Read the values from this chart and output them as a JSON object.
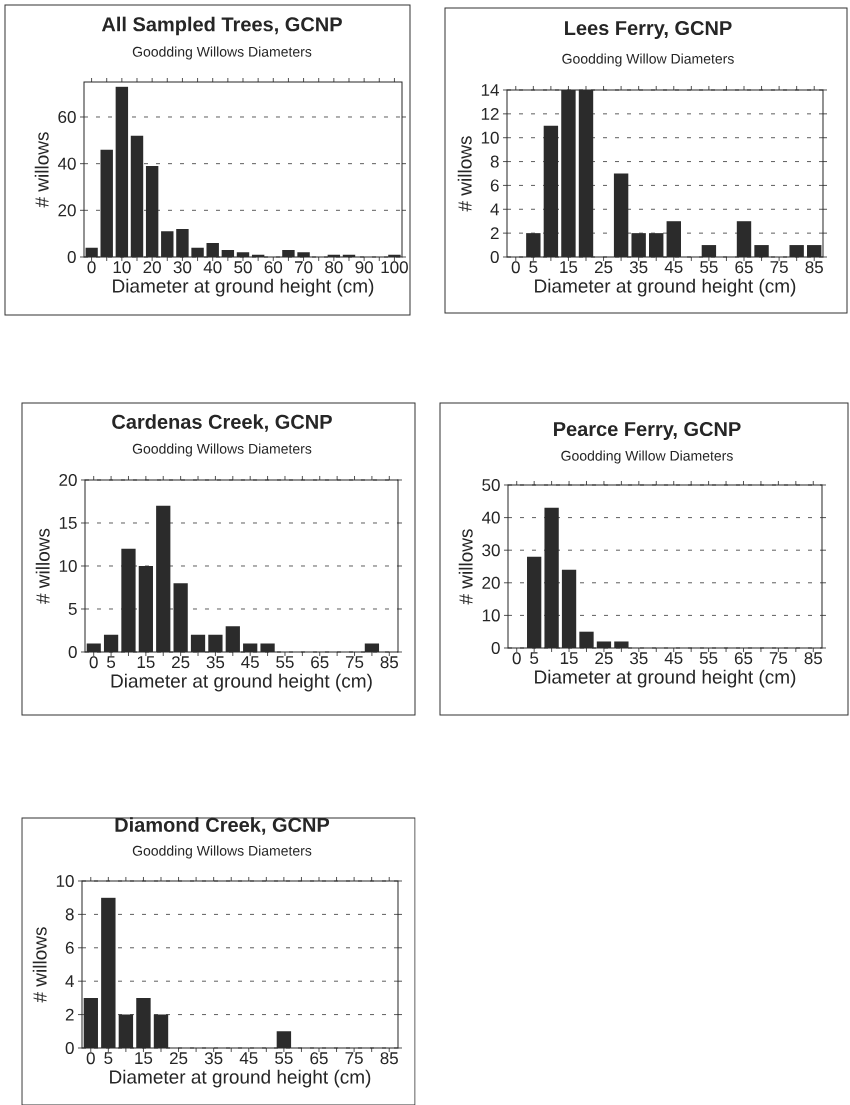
{
  "chart_data": [
    {
      "type": "bar",
      "title": "All Sampled Trees, GCNP",
      "subtitle": "Goodding Willows Diameters",
      "xlabel": "Diameter at ground height (cm)",
      "ylabel": "# willows",
      "categories": [
        "0",
        null,
        "10",
        null,
        "20",
        null,
        "30",
        null,
        "40",
        null,
        "50",
        null,
        "60",
        null,
        "70",
        null,
        "80",
        null,
        "90",
        null,
        "100"
      ],
      "values": [
        4,
        46,
        73,
        52,
        39,
        11,
        12,
        4,
        6,
        3,
        2,
        1,
        0,
        3,
        2,
        0,
        1,
        1,
        0,
        0,
        1
      ],
      "color": "#2b2b2b",
      "ylim": [
        0,
        75
      ],
      "yticks": [
        0,
        20,
        40,
        60
      ],
      "grid": "y"
    },
    {
      "type": "bar",
      "title": "Lees Ferry, GCNP",
      "subtitle": "Goodding Willow Diameters",
      "xlabel": "Diameter at ground height (cm)",
      "ylabel": "# willows",
      "categories": [
        "0",
        "5",
        null,
        "15",
        null,
        "25",
        null,
        "35",
        null,
        "45",
        null,
        "55",
        null,
        "65",
        null,
        "75",
        null,
        "85"
      ],
      "values": [
        0,
        2,
        11,
        14,
        14,
        0,
        7,
        2,
        2,
        3,
        0,
        1,
        0,
        3,
        1,
        0,
        1,
        1
      ],
      "color": "#2b2b2b",
      "ylim": [
        0,
        14
      ],
      "yticks": [
        0,
        2,
        4,
        6,
        8,
        10,
        12,
        14
      ],
      "grid": "y"
    },
    {
      "type": "bar",
      "title": "Cardenas Creek, GCNP",
      "subtitle": "Goodding Willows Diameters",
      "xlabel": "Diameter at ground height (cm)",
      "ylabel": "# willows",
      "categories": [
        "0",
        "5",
        null,
        "15",
        null,
        "25",
        null,
        "35",
        null,
        "45",
        null,
        "55",
        null,
        "65",
        null,
        "75",
        null,
        "85"
      ],
      "values": [
        1,
        2,
        12,
        10,
        17,
        8,
        2,
        2,
        3,
        1,
        1,
        0,
        0,
        0,
        0,
        0,
        1,
        0
      ],
      "color": "#2b2b2b",
      "ylim": [
        0,
        20
      ],
      "yticks": [
        0,
        5,
        10,
        15,
        20
      ],
      "grid": "y"
    },
    {
      "type": "bar",
      "title": "Pearce Ferry, GCNP",
      "subtitle": "Goodding Willow Diameters",
      "xlabel": "Diameter at ground height (cm)",
      "ylabel": "# willows",
      "categories": [
        "0",
        "5",
        null,
        "15",
        null,
        "25",
        null,
        "35",
        null,
        "45",
        null,
        "55",
        null,
        "65",
        null,
        "75",
        null,
        "85"
      ],
      "values": [
        0,
        28,
        43,
        24,
        5,
        2,
        2,
        0,
        0,
        0,
        0,
        0,
        0,
        0,
        0,
        0,
        0,
        0
      ],
      "color": "#2b2b2b",
      "ylim": [
        0,
        50
      ],
      "yticks": [
        0,
        10,
        20,
        30,
        40,
        50
      ],
      "grid": "y"
    },
    {
      "type": "bar",
      "title": "Diamond Creek, GCNP",
      "subtitle": "Goodding Willows Diameters",
      "xlabel": "Diameter at ground height (cm)",
      "ylabel": "# willows",
      "categories": [
        "0",
        "5",
        null,
        "15",
        null,
        "25",
        null,
        "35",
        null,
        "45",
        null,
        "55",
        null,
        "65",
        null,
        "75",
        null,
        "85"
      ],
      "values": [
        3,
        9,
        2,
        3,
        2,
        0,
        0,
        0,
        0,
        0,
        0,
        1,
        0,
        0,
        0,
        0,
        0,
        0
      ],
      "color": "#2b2b2b",
      "ylim": [
        0,
        10
      ],
      "yticks": [
        0,
        2,
        4,
        6,
        8,
        10
      ],
      "grid": "y"
    }
  ]
}
